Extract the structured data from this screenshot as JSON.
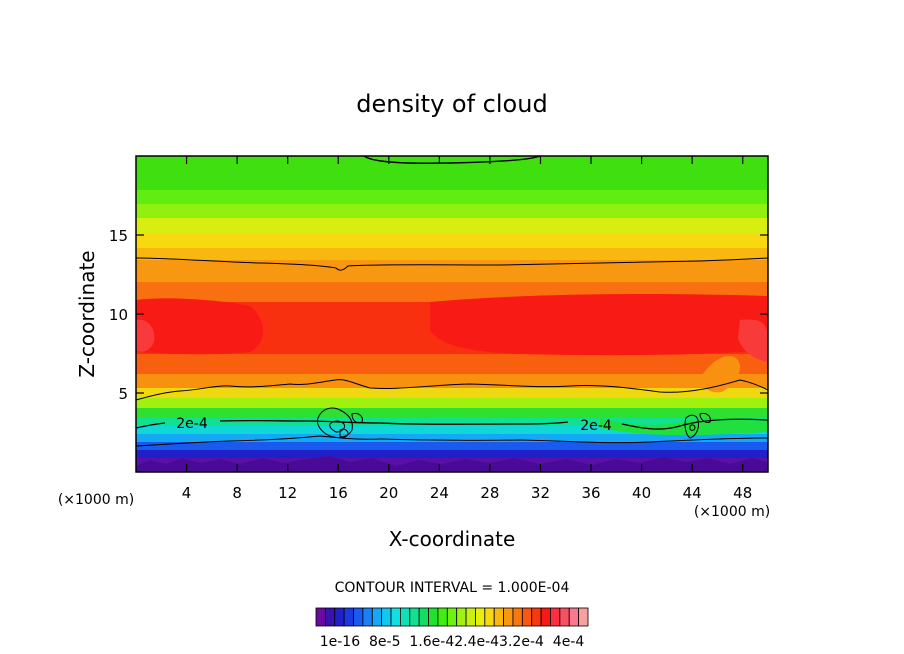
{
  "chart_data": {
    "type": "heatmap",
    "title": "density of cloud",
    "xlabel": "X-coordinate",
    "ylabel": "Z-coordinate",
    "x_unit_left": "(×1000 m)",
    "x_unit_right": "(×1000 m)",
    "xlim": [
      0,
      50
    ],
    "ylim": [
      0,
      20
    ],
    "x_ticks": [
      4,
      8,
      12,
      16,
      20,
      24,
      28,
      32,
      36,
      40,
      44,
      48
    ],
    "y_ticks": [
      5,
      10,
      15
    ],
    "contour_interval_text": "CONTOUR INTERVAL = 1.000E-04",
    "contour_label": "2e-4",
    "colorbar": {
      "label_text": "1e-16  8e-5  1.6e-42.4e-43.2e-4  4e-4",
      "colors": [
        "#6a0a9e",
        "#3a12b0",
        "#2020c8",
        "#1a3ae0",
        "#1a5aef",
        "#1a80f5",
        "#14a8f5",
        "#10c8f0",
        "#10e0e0",
        "#10e0b8",
        "#10e090",
        "#10e060",
        "#20e030",
        "#40ee10",
        "#70f010",
        "#a0f010",
        "#c8f010",
        "#e8ee10",
        "#f8d810",
        "#f8b810",
        "#f89810",
        "#f87810",
        "#f85810",
        "#f83810",
        "#f81818",
        "#f83040",
        "#f85060",
        "#f87890",
        "#f8a0a0"
      ]
    },
    "grid": false
  }
}
